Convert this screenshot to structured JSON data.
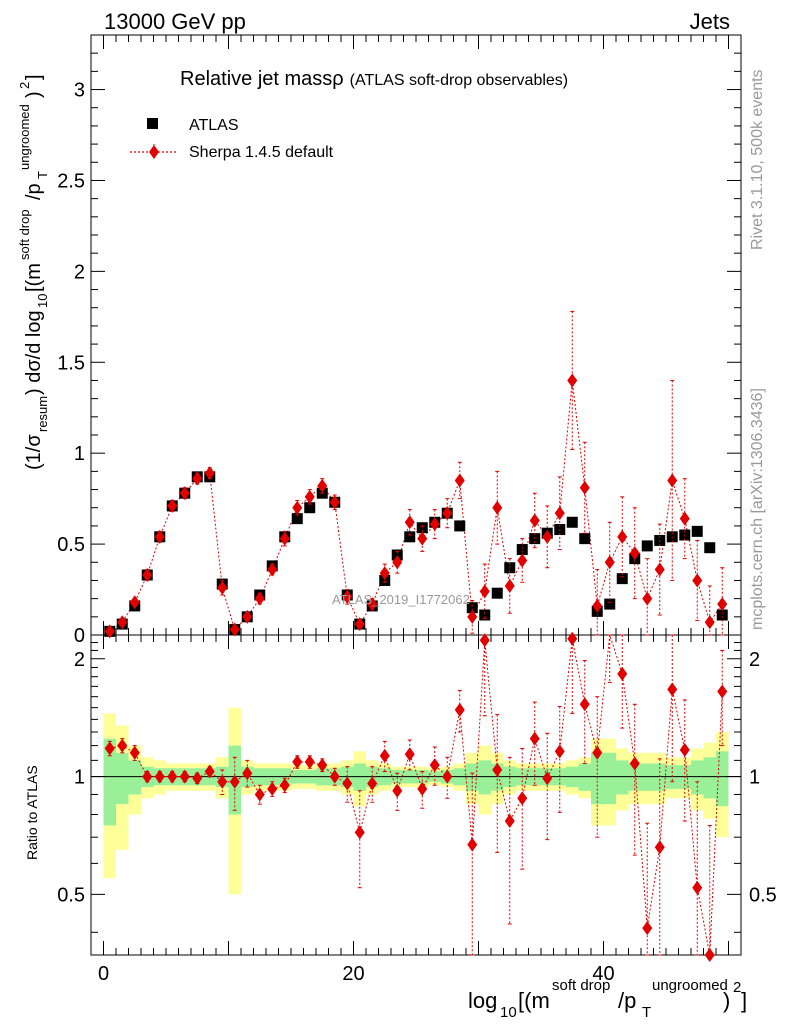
{
  "header": {
    "energy": "13000 GeV pp",
    "category": "Jets"
  },
  "side": {
    "rivet": "Rivet 3.1.10,  500k events",
    "mcplots": "mcplots.cern.ch [arXiv:1306.3436]"
  },
  "chart_data": {
    "type": "scatter",
    "title_main": "Relative jet mass",
    "title_rho": "ρ",
    "title_sub": "(ATLAS soft-drop observables)",
    "analysis_id": "ATLAS_2019_I1772062",
    "xlabel": "log10[(m^soft drop/pT^ungroomed)^2]",
    "ylabel": "(1/σresum) dσ/d log10[(m^soft drop/pT^ungroomed)^2]",
    "ratio_ylabel": "Ratio to ATLAS",
    "xlim": [
      -1,
      51
    ],
    "ylim": [
      0,
      3.3
    ],
    "ratio_ylim": [
      0.35,
      2.3
    ],
    "x_ticks": [
      0,
      20,
      40
    ],
    "y_ticks": [
      0,
      0.5,
      1,
      1.5,
      2,
      2.5,
      3
    ],
    "y_tick_labels": [
      "0",
      "0.5",
      "1",
      "1.5",
      "2",
      "2.5",
      "3"
    ],
    "ratio_ticks": [
      0.5,
      1,
      2
    ],
    "ratio_tick_labels": [
      "0.5",
      "1",
      "2"
    ],
    "legend": [
      {
        "name": "ATLAS",
        "marker": "square",
        "color": "#000000"
      },
      {
        "name": "Sherpa 1.4.5 default",
        "marker": "diamond",
        "color": "#e00000"
      }
    ],
    "x": [
      0.5,
      1.5,
      2.5,
      3.5,
      4.5,
      5.5,
      6.5,
      7.5,
      8.5,
      9.5,
      10.5,
      11.5,
      12.5,
      13.5,
      14.5,
      15.5,
      16.5,
      17.5,
      18.5,
      19.5,
      20.5,
      21.5,
      22.5,
      23.5,
      24.5,
      25.5,
      26.5,
      27.5,
      28.5,
      29.5,
      30.5,
      31.5,
      32.5,
      33.5,
      34.5,
      35.5,
      36.5,
      37.5,
      38.5,
      39.5,
      40.5,
      41.5,
      42.5,
      43.5,
      44.5,
      45.5,
      46.5,
      47.5,
      48.5,
      49.5
    ],
    "series": [
      {
        "name": "ATLAS",
        "values": [
          0.02,
          0.06,
          0.16,
          0.33,
          0.54,
          0.71,
          0.78,
          0.87,
          0.87,
          0.28,
          0.03,
          0.1,
          0.22,
          0.38,
          0.54,
          0.64,
          0.7,
          0.78,
          0.73,
          0.22,
          0.06,
          0.16,
          0.3,
          0.44,
          0.54,
          0.59,
          0.62,
          0.67,
          0.6,
          0.15,
          0.11,
          0.23,
          0.37,
          0.47,
          0.53,
          0.56,
          0.58,
          0.62,
          0.53,
          0.13,
          0.17,
          0.31,
          0.42,
          0.49,
          0.52,
          0.54,
          0.55,
          0.57,
          0.48,
          0.11
        ]
      },
      {
        "name": "Sherpa 1.4.5 default",
        "values": [
          0.02,
          0.07,
          0.18,
          0.33,
          0.54,
          0.71,
          0.78,
          0.86,
          0.89,
          0.26,
          0.03,
          0.1,
          0.2,
          0.36,
          0.53,
          0.7,
          0.76,
          0.82,
          0.73,
          0.21,
          0.06,
          0.17,
          0.34,
          0.4,
          0.62,
          0.53,
          0.61,
          0.67,
          0.85,
          0.1,
          0.24,
          0.7,
          0.27,
          0.41,
          0.63,
          0.54,
          0.67,
          1.4,
          0.81,
          0.16,
          0.4,
          0.54,
          0.45,
          0.2,
          0.36,
          0.85,
          0.64,
          0.3,
          0.07,
          0.17
        ],
        "errors": [
          0.005,
          0.01,
          0.02,
          0.03,
          0.03,
          0.03,
          0.03,
          0.03,
          0.03,
          0.04,
          0.01,
          0.02,
          0.03,
          0.03,
          0.04,
          0.04,
          0.04,
          0.04,
          0.04,
          0.04,
          0.02,
          0.03,
          0.05,
          0.06,
          0.07,
          0.07,
          0.08,
          0.08,
          0.1,
          0.09,
          0.15,
          0.2,
          0.15,
          0.12,
          0.15,
          0.17,
          0.2,
          0.38,
          0.25,
          0.2,
          0.22,
          0.22,
          0.25,
          0.22,
          0.25,
          0.55,
          0.22,
          0.22,
          0.2,
          0.2
        ]
      }
    ],
    "ratio": {
      "values": [
        1.18,
        1.2,
        1.15,
        1.0,
        1.0,
        1.0,
        1.0,
        0.99,
        1.03,
        0.97,
        0.97,
        1.02,
        0.9,
        0.93,
        0.95,
        1.09,
        1.09,
        1.07,
        1.0,
        0.96,
        0.72,
        0.96,
        1.13,
        0.92,
        1.14,
        0.93,
        1.07,
        1.0,
        1.48,
        0.67,
        2.23,
        1.04,
        0.77,
        0.88,
        1.25,
        0.99,
        1.16,
        2.25,
        1.53,
        1.15,
        2.34,
        1.83,
        1.08,
        0.41,
        0.66,
        1.67,
        1.17,
        0.52,
        0.35,
        1.65
      ],
      "errors": [
        0.05,
        0.05,
        0.05,
        0.03,
        0.03,
        0.03,
        0.03,
        0.03,
        0.03,
        0.07,
        0.15,
        0.08,
        0.05,
        0.04,
        0.04,
        0.04,
        0.04,
        0.04,
        0.05,
        0.1,
        0.2,
        0.1,
        0.1,
        0.1,
        0.1,
        0.1,
        0.12,
        0.12,
        0.18,
        0.35,
        0.8,
        0.4,
        0.35,
        0.3,
        0.3,
        0.3,
        0.35,
        0.8,
        0.45,
        0.45,
        0.6,
        0.5,
        0.45,
        0.35,
        0.45,
        0.7,
        0.4,
        0.45,
        0.4,
        0.45
      ],
      "band_green": [
        0.25,
        0.15,
        0.1,
        0.06,
        0.05,
        0.05,
        0.05,
        0.05,
        0.05,
        0.06,
        0.2,
        0.06,
        0.05,
        0.05,
        0.05,
        0.04,
        0.04,
        0.05,
        0.05,
        0.06,
        0.08,
        0.06,
        0.05,
        0.04,
        0.04,
        0.04,
        0.03,
        0.04,
        0.05,
        0.08,
        0.1,
        0.08,
        0.06,
        0.05,
        0.05,
        0.05,
        0.05,
        0.06,
        0.08,
        0.15,
        0.15,
        0.1,
        0.08,
        0.08,
        0.08,
        0.07,
        0.07,
        0.1,
        0.12,
        0.16
      ],
      "band_yellow": [
        0.45,
        0.35,
        0.2,
        0.12,
        0.1,
        0.08,
        0.08,
        0.08,
        0.08,
        0.12,
        0.5,
        0.1,
        0.08,
        0.08,
        0.08,
        0.07,
        0.07,
        0.08,
        0.08,
        0.1,
        0.16,
        0.1,
        0.08,
        0.06,
        0.06,
        0.06,
        0.05,
        0.06,
        0.08,
        0.15,
        0.2,
        0.15,
        0.1,
        0.08,
        0.08,
        0.08,
        0.08,
        0.1,
        0.12,
        0.25,
        0.25,
        0.18,
        0.15,
        0.15,
        0.15,
        0.12,
        0.12,
        0.18,
        0.22,
        0.3
      ]
    }
  }
}
